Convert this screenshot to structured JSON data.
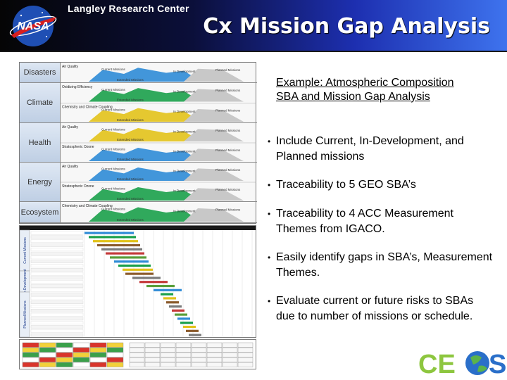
{
  "header": {
    "logo": "NASA",
    "org": "Langley Research Center",
    "title": "Cx Mission Gap Analysis"
  },
  "figure": {
    "sbas": [
      {
        "label": "Disasters",
        "subs": [
          "Air Quality"
        ],
        "phases": [
          "Current Missions",
          "Extended Missions",
          "In Development",
          "Planned Missions"
        ]
      },
      {
        "label": "Climate",
        "subs": [
          "Oxidizing Efficiency",
          "Chemistry and Climate Coupling"
        ],
        "phases": [
          "Current Missions",
          "Extended Missions",
          "In Development",
          "Planned Missions"
        ]
      },
      {
        "label": "Health",
        "subs": [
          "Air Quality",
          "Stratospheric Ozone"
        ],
        "phases": [
          "Current Missions",
          "Extended Missions",
          "In Development",
          "Planned Missions"
        ]
      },
      {
        "label": "Energy",
        "subs": [
          "Air Quality",
          "Stratospheric Ozone"
        ],
        "phases": [
          "Current Missions",
          "Extended Missions",
          "In Development",
          "Planned Missions"
        ]
      },
      {
        "label": "Ecosystem",
        "subs": [
          "Chemistry and Climate Coupling"
        ],
        "phases": [
          "Current Missions",
          "Extended Missions",
          "In Development",
          "Planned Missions"
        ]
      }
    ],
    "table_groups": [
      "Current Missions",
      "In Development",
      "Planned Missions"
    ]
  },
  "content": {
    "example_title": "Example: Atmospheric Composition SBA and Mission Gap Analysis",
    "bullets": [
      "Include Current, In-Development, and Planned missions",
      "Traceability to 5 GEO SBA’s",
      "Traceability to 4 ACC Measurement Themes from IGACO.",
      "Easily identify gaps in SBA’s, Measurement Themes.",
      "Evaluate current or future risks to SBAs due to number of missions or schedule."
    ]
  },
  "footer": {
    "logo": "CEOS"
  },
  "colors": {
    "header_dark": "#050505",
    "header_blue": "#3e73ee",
    "current": "#2e8bd6",
    "extended": "#1aa04a",
    "development": "#e2c21a",
    "planned": "#c8c8c8"
  }
}
